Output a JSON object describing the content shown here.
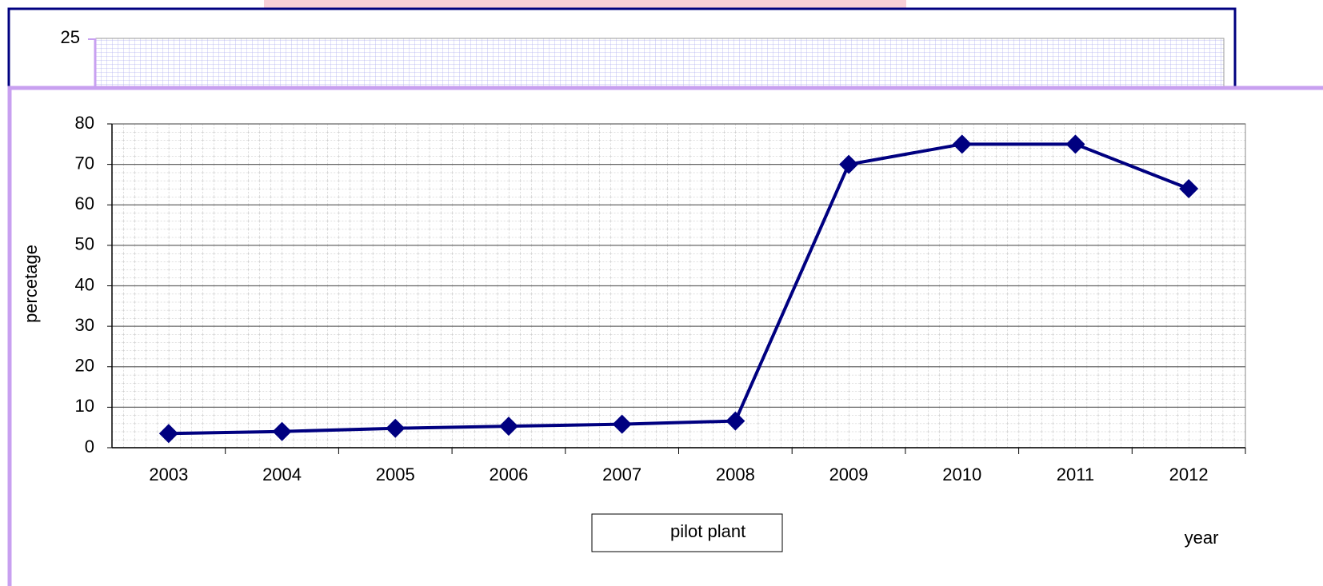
{
  "chart_data": [
    {
      "type": "line",
      "categories": [
        "2003",
        "2004",
        "2005",
        "2006",
        "2007",
        "2008",
        "2009",
        "2010",
        "2011",
        "2012"
      ],
      "series": [
        {
          "name": "pilot plant",
          "color": "#000080",
          "values": [
            3.5,
            4,
            4.8,
            5.3,
            5.8,
            6.6,
            70,
            75,
            75,
            64
          ]
        }
      ],
      "ylim": [
        0,
        80
      ],
      "yticks": [
        0,
        10,
        20,
        30,
        40,
        50,
        60,
        70,
        80
      ],
      "xlabel": "year",
      "ylabel": "percetage",
      "grid": true,
      "legend": "bottom"
    },
    {
      "type": "line",
      "yticks": [
        25
      ]
    }
  ]
}
